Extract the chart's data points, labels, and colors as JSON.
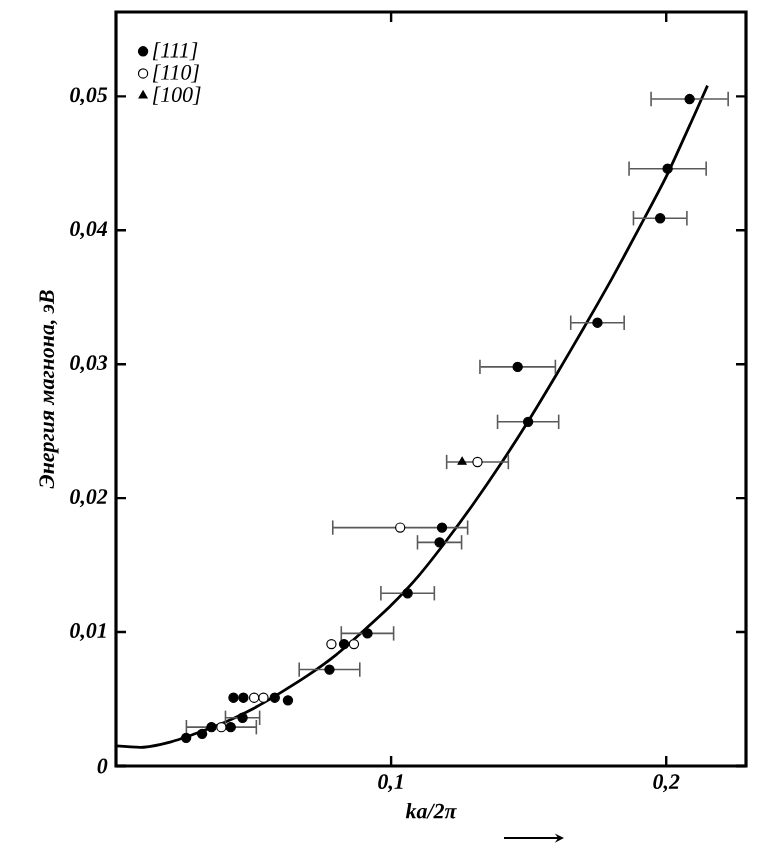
{
  "chart_data": {
    "type": "scatter",
    "xlabel": "ka/2π",
    "ylabel": "Энергия магнона, эВ",
    "xlim": [
      0,
      0.229
    ],
    "ylim": [
      0,
      0.0563
    ],
    "xticks": [
      {
        "value": 0.1,
        "label": "0,1"
      },
      {
        "value": 0.2,
        "label": "0,2"
      }
    ],
    "yticks": [
      {
        "value": 0,
        "label": "0"
      },
      {
        "value": 0.01,
        "label": "0,01"
      },
      {
        "value": 0.02,
        "label": "0,02"
      },
      {
        "value": 0.03,
        "label": "0,03"
      },
      {
        "value": 0.04,
        "label": "0,04"
      },
      {
        "value": 0.05,
        "label": "0,05"
      }
    ],
    "legend": "top left",
    "grid": false,
    "series": [
      {
        "name": "[111]",
        "color": "#000000",
        "marker": "circle",
        "x": [
          0.2085,
          0.2005,
          0.1978,
          0.175,
          0.146,
          0.1498,
          0.1185,
          0.1176,
          0.106,
          0.0914,
          0.0829,
          0.0776,
          0.0427,
          0.0463,
          0.0577,
          0.0625,
          0.046,
          0.0347,
          0.0417,
          0.0313,
          0.0255
        ],
        "values": [
          0.0498,
          0.0446,
          0.0409,
          0.0331,
          0.0298,
          0.0257,
          0.0178,
          0.0167,
          0.0129,
          0.0099,
          0.0091,
          0.0072,
          0.0051,
          0.0051,
          0.0051,
          0.0049,
          0.0036,
          0.0029,
          0.0029,
          0.0024,
          0.0021
        ],
        "xerrors": [
          0.0143,
          0.0143,
          0.01,
          0.01,
          0.014,
          0.0114,
          null,
          0.0083,
          0.01,
          0.0098,
          null,
          0.0113,
          null,
          null,
          null,
          null,
          0.0065,
          null,
          null,
          null,
          null
        ]
      },
      {
        "name": "[110]",
        "color": "#ffffff",
        "marker": "circle",
        "x": [
          0.1314,
          0.1033,
          0.0783,
          0.0865,
          0.0502,
          0.0536,
          0.0383
        ],
        "values": [
          0.0227,
          0.0178,
          0.0091,
          0.0091,
          0.0051,
          0.0051,
          0.0029
        ],
        "xerrors": [
          0.0115,
          0.0248,
          null,
          null,
          null,
          null,
          0.013
        ]
      },
      {
        "name": "[100]",
        "color": "#000000",
        "marker": "triangle",
        "x": [
          0.1258
        ],
        "values": [
          0.0227
        ]
      },
      {
        "type": "line",
        "color": "#000000",
        "marker": "none",
        "line_style": "solid",
        "x": [
          0,
          0.01,
          0.02,
          0.03,
          0.04,
          0.05,
          0.06,
          0.07,
          0.08,
          0.09,
          0.1,
          0.11,
          0.12,
          0.13,
          0.14,
          0.15,
          0.16,
          0.17,
          0.18,
          0.19,
          0.2,
          0.21,
          0.215
        ],
        "values": [
          0.0015,
          0.0014,
          0.0018,
          0.0025,
          0.0033,
          0.0043,
          0.0055,
          0.0068,
          0.0083,
          0.0101,
          0.012,
          0.0142,
          0.0168,
          0.0196,
          0.0226,
          0.0258,
          0.0292,
          0.0327,
          0.0363,
          0.0401,
          0.044,
          0.0485,
          0.0508
        ]
      }
    ]
  }
}
